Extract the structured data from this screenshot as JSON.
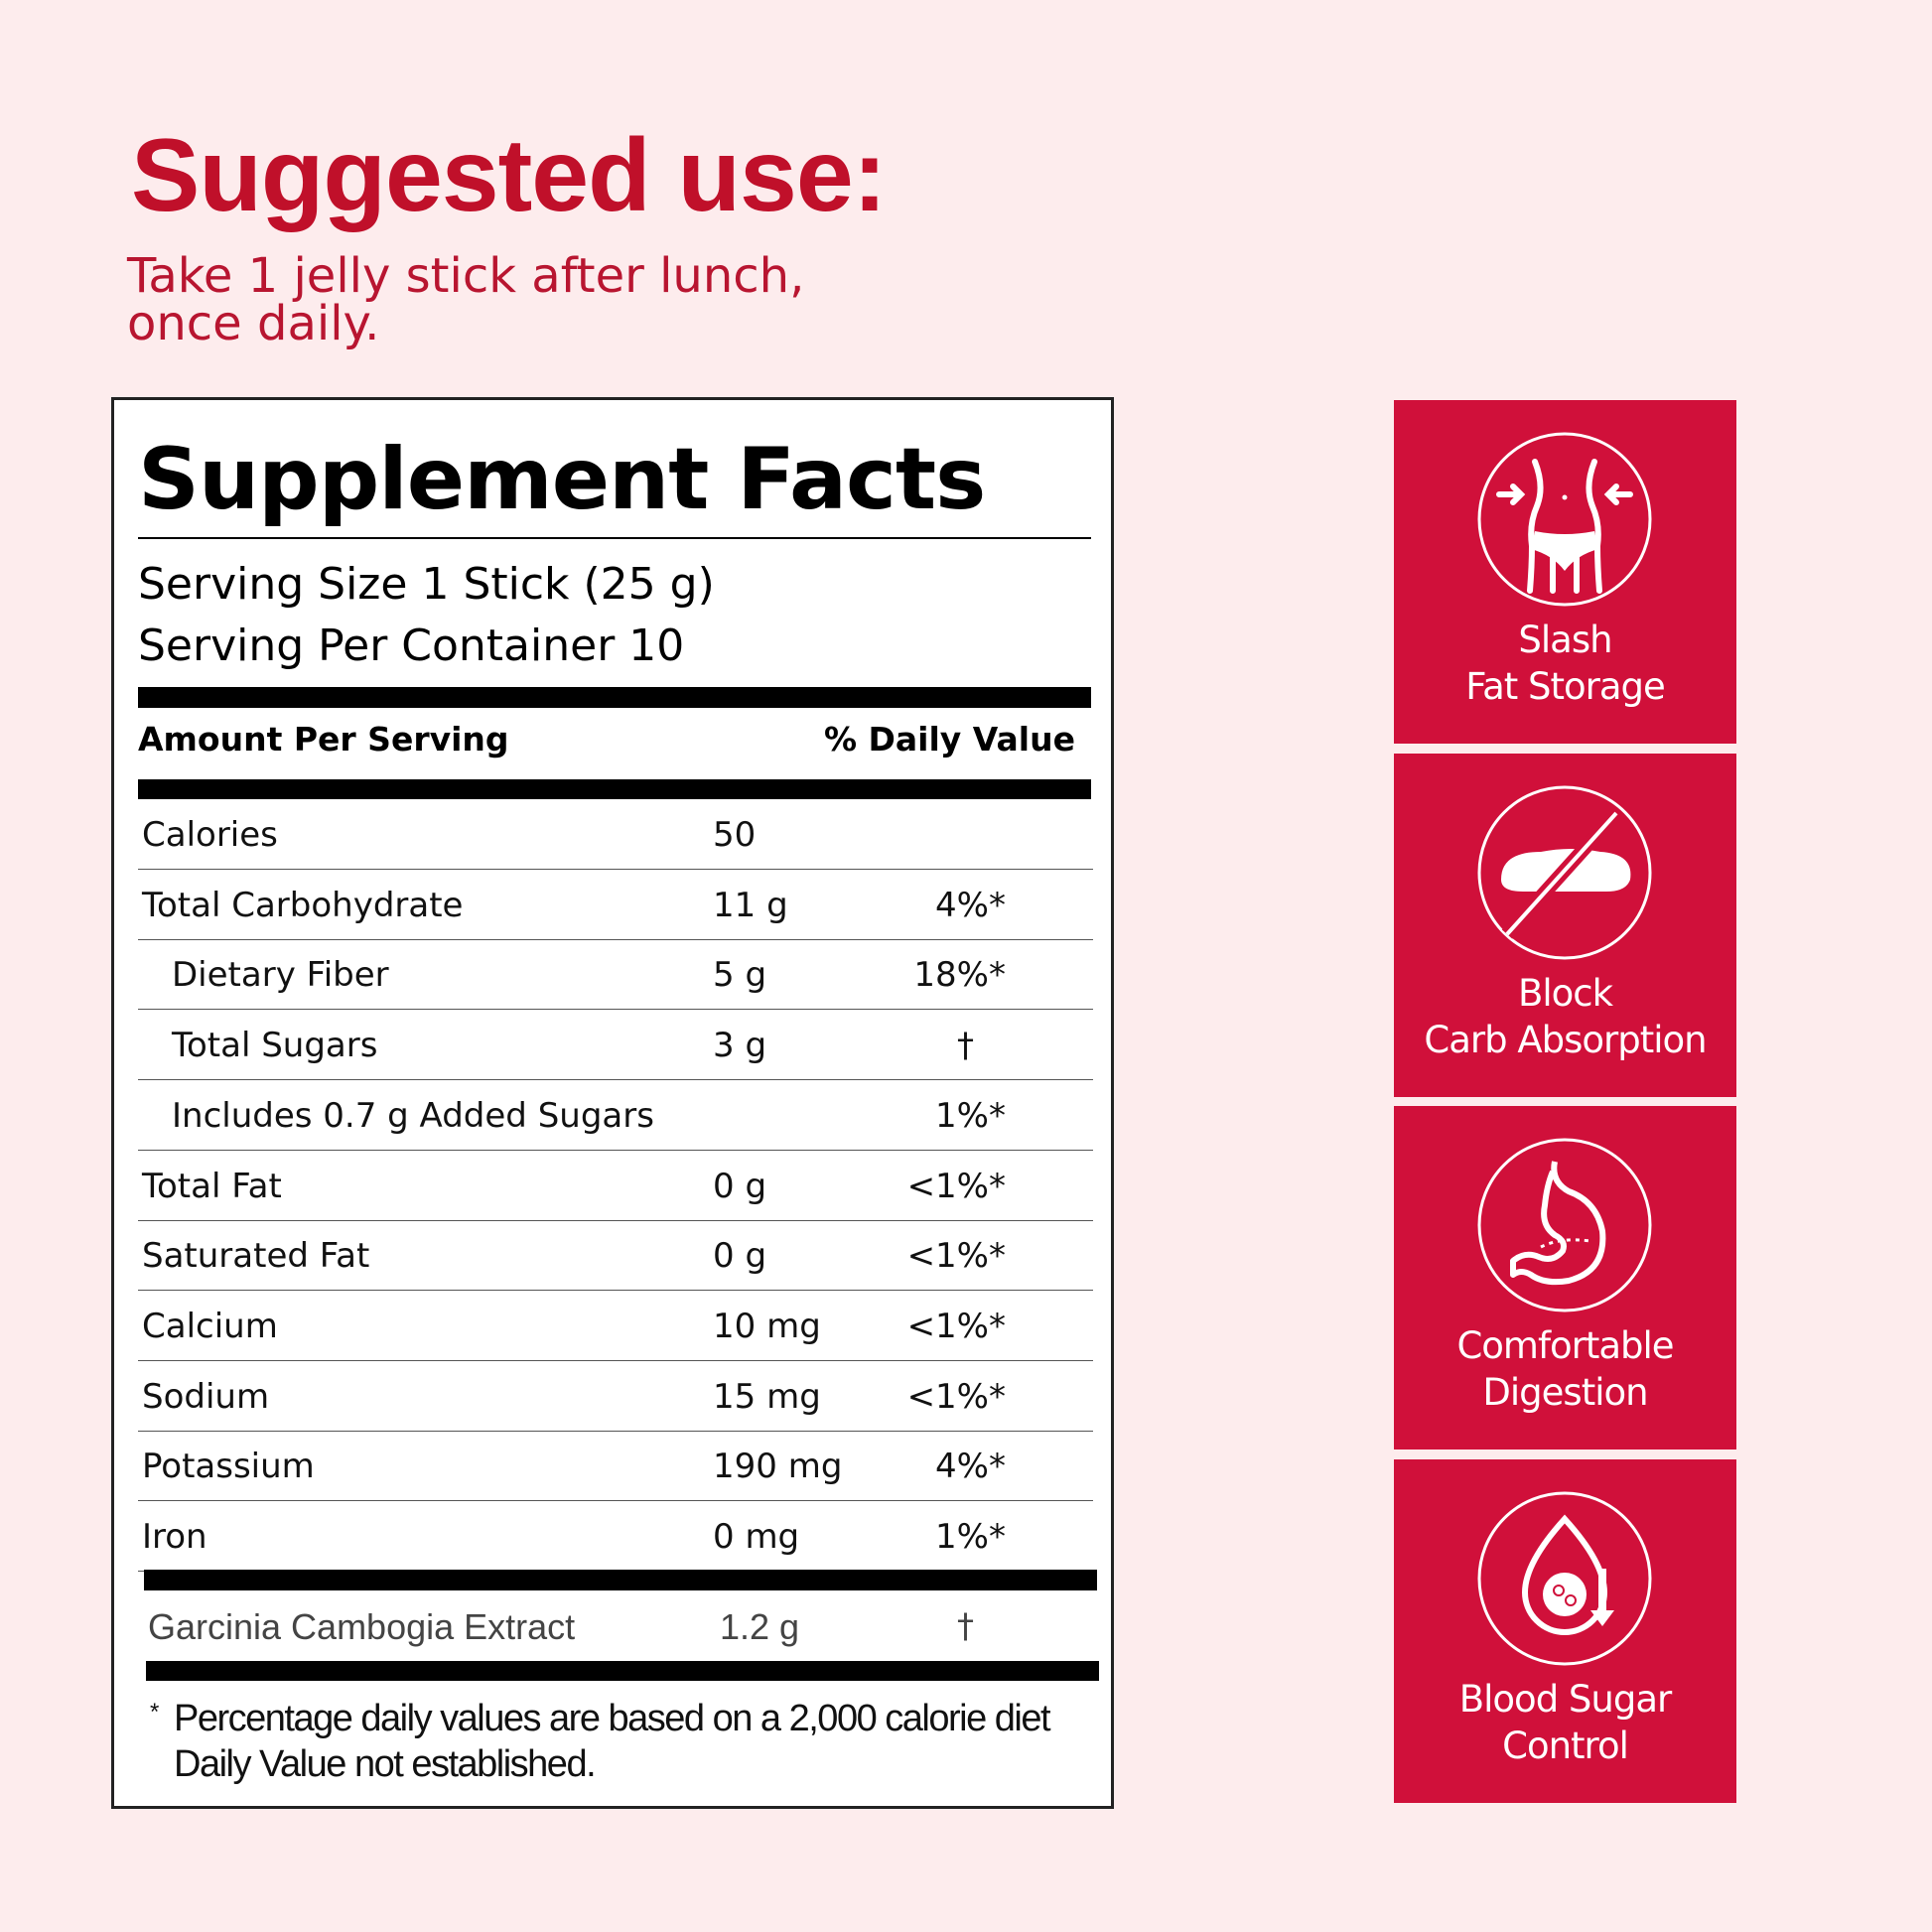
{
  "suggested_use": {
    "title": "Suggested use:",
    "line1": "Take 1 jelly stick after lunch,",
    "line2": "once daily."
  },
  "facts": {
    "title": "Supplement Facts",
    "serving_size": "Serving Size 1 Stick (25 g)",
    "servings_per_container": "Serving Per Container 10",
    "amount_header": "Amount Per Serving",
    "dv_header": "% Daily Value",
    "rows": [
      {
        "name": "Calories",
        "amount": "50",
        "dv": ""
      },
      {
        "name": "Total Carbohydrate",
        "amount": "11 g",
        "dv": "4%*"
      },
      {
        "name": "Dietary Fiber",
        "amount": "5 g",
        "dv": "18%*"
      },
      {
        "name": "Total Sugars",
        "amount": "3 g",
        "dv": "†"
      },
      {
        "name": "Includes 0.7 g Added Sugars",
        "amount": "",
        "dv": "1%*"
      },
      {
        "name": "Total Fat",
        "amount": "0 g",
        "dv": "<1%*"
      },
      {
        "name": "Saturated Fat",
        "amount": "0 g",
        "dv": "<1%*"
      },
      {
        "name": "Calcium",
        "amount": "10 mg",
        "dv": "<1%*"
      },
      {
        "name": "Sodium",
        "amount": "15 mg",
        "dv": "<1%*"
      },
      {
        "name": "Potassium",
        "amount": "190 mg",
        "dv": "4%*"
      },
      {
        "name": "Iron",
        "amount": "0 mg",
        "dv": "1%*"
      }
    ],
    "extract": {
      "name": "Garcinia Cambogia Extract",
      "amount": "1.2 g",
      "dv": "†"
    },
    "footnote_mark": "*",
    "footnote1": "Percentage daily values are based on a 2,000 calorie diet",
    "footnote2": "Daily Value not established."
  },
  "benefits": [
    {
      "icon": "waist-slim-icon",
      "line1": "Slash",
      "line2": "Fat Storage"
    },
    {
      "icon": "no-bread-icon",
      "line1": "Block",
      "line2": "Carb Absorption"
    },
    {
      "icon": "stomach-icon",
      "line1": "Comfortable",
      "line2": "Digestion"
    },
    {
      "icon": "blood-sugar-icon",
      "line1": "Blood Sugar",
      "line2": "Control"
    }
  ],
  "colors": {
    "accent": "#d0103a",
    "background": "#fdeced"
  }
}
